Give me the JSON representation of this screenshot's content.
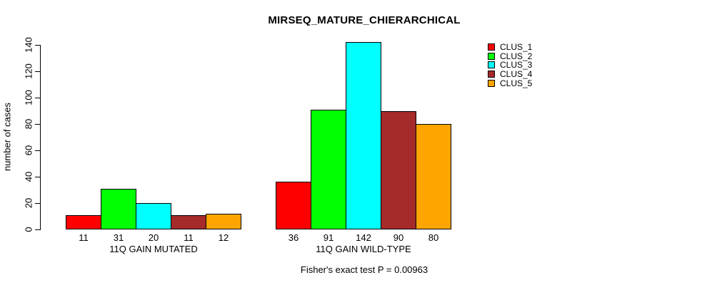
{
  "title": "MIRSEQ_MATURE_CHIERARCHICAL",
  "ylabel": "number of cases",
  "footer": "Fisher's exact test P = 0.00963",
  "chart_data": {
    "type": "bar",
    "title": "MIRSEQ_MATURE_CHIERARCHICAL",
    "xlabel": "",
    "ylabel": "number of cases",
    "ylim": [
      0,
      140
    ],
    "yticks": [
      0,
      20,
      40,
      60,
      80,
      100,
      120,
      140
    ],
    "grid": false,
    "legend_position": "right",
    "bar_value_labels_shown": true,
    "categories": [
      "11Q GAIN MUTATED",
      "11Q GAIN WILD-TYPE"
    ],
    "series": [
      {
        "name": "CLUS_1",
        "color": "#FF0000",
        "values": [
          11,
          36
        ]
      },
      {
        "name": "CLUS_2",
        "color": "#00FF00",
        "values": [
          31,
          91
        ]
      },
      {
        "name": "CLUS_3",
        "color": "#00FFFF",
        "values": [
          20,
          142
        ]
      },
      {
        "name": "CLUS_4",
        "color": "#A52A2A",
        "values": [
          11,
          90
        ]
      },
      {
        "name": "CLUS_5",
        "color": "#FFA500",
        "values": [
          12,
          80
        ]
      }
    ],
    "annotation": "Fisher's exact test P = 0.00963"
  }
}
